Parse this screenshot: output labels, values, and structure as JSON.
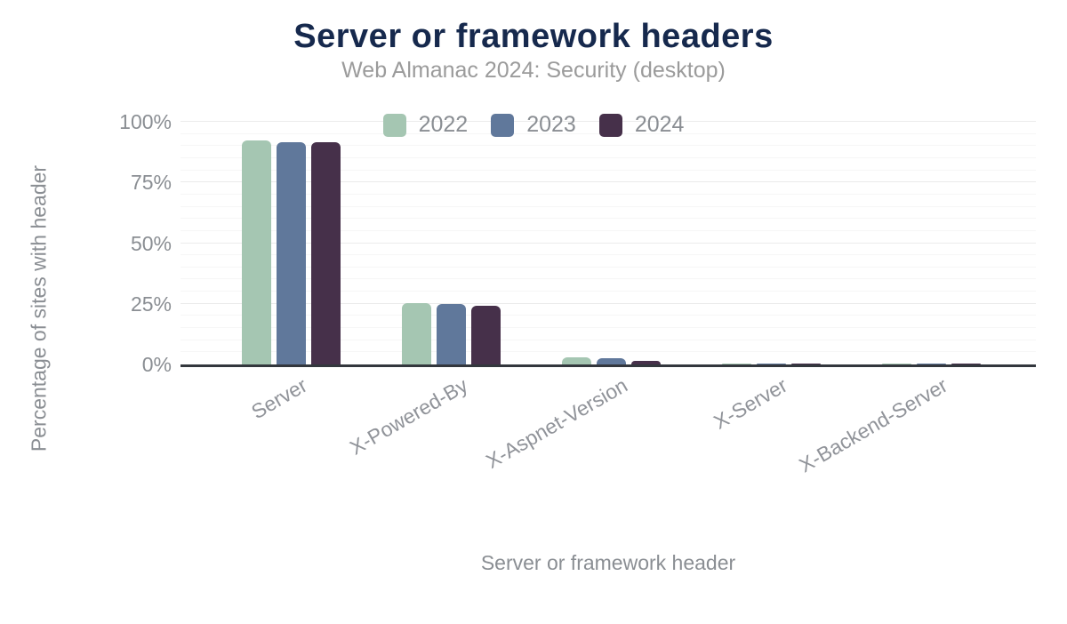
{
  "chart_data": {
    "type": "bar",
    "title": "Server or framework headers",
    "subtitle": "Web Almanac 2024: Security (desktop)",
    "xlabel": "Server or framework header",
    "ylabel": "Percentage of sites with header",
    "categories": [
      "Server",
      "X-Powered-By",
      "X-Aspnet-Version",
      "X-Server",
      "X-Backend-Server"
    ],
    "series": [
      {
        "name": "2022",
        "color": "#a5c6b2",
        "values": [
          92.3,
          25.1,
          2.8,
          0.5,
          0.5
        ]
      },
      {
        "name": "2023",
        "color": "#60789b",
        "values": [
          91.5,
          25.0,
          2.6,
          0.5,
          0.4
        ]
      },
      {
        "name": "2024",
        "color": "#46304a",
        "values": [
          91.6,
          24.0,
          1.6,
          0.4,
          0.3
        ]
      }
    ],
    "yticks": [
      "0%",
      "25%",
      "50%",
      "75%",
      "100%"
    ],
    "ylim": [
      0,
      100
    ],
    "minor_grid_step": 5,
    "major_grid_step": 25,
    "legend_position": "top",
    "grid": "horizontal"
  },
  "colors": {
    "title": "#16294d",
    "subtitle": "#9b9b9b",
    "axis_text": "#8a8e93",
    "axis_line": "#33373d",
    "major_grid": "#ebebeb",
    "minor_grid": "#f6f6f6",
    "background": "#ffffff"
  }
}
